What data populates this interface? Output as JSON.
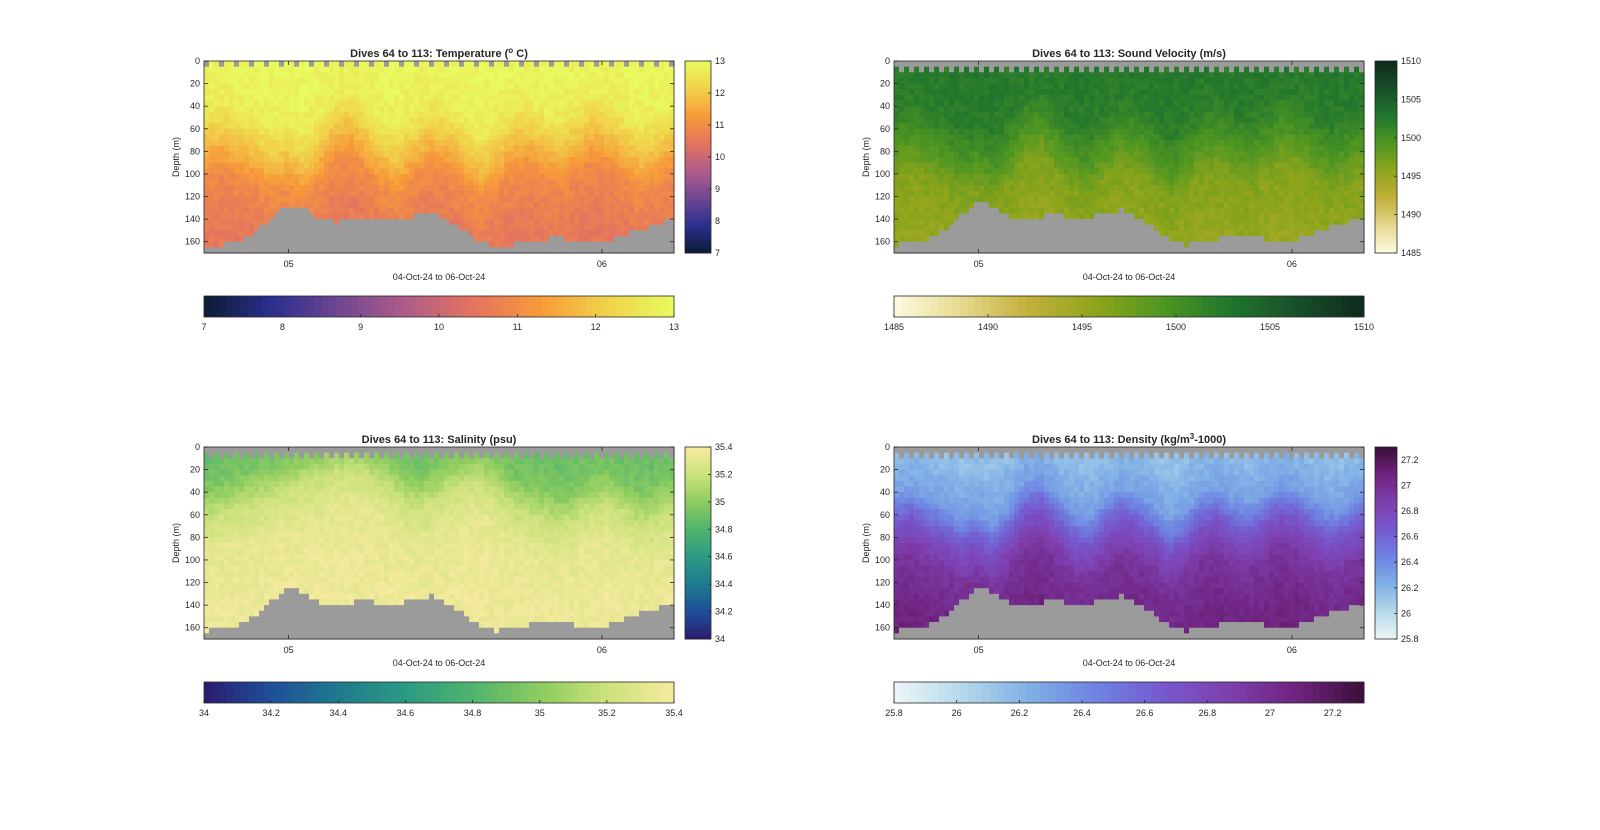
{
  "chart_data": [
    {
      "type": "heatmap",
      "title": "Dives 64 to 113: Temperature (",
      "title_sup": "o",
      "title_suffix": " C)",
      "xlabel": "04-Oct-24 to 06-Oct-24",
      "ylabel": "Depth (m)",
      "x_ticks": [
        "05",
        "06"
      ],
      "x_range_days": [
        4.73,
        6.23
      ],
      "x_tick_values": [
        5,
        6
      ],
      "y_ticks": [
        0,
        20,
        40,
        60,
        80,
        100,
        120,
        140,
        160
      ],
      "ylim": [
        0,
        170
      ],
      "y_reversed": true,
      "clim": [
        7,
        13
      ],
      "side_colorbar_ticks": [
        "7",
        "8",
        "9",
        "10",
        "11",
        "12",
        "13"
      ],
      "bottom_colorbar_ticks": [
        "7",
        "8",
        "9",
        "10",
        "11",
        "12",
        "13"
      ],
      "colormap": [
        "#0b1b33",
        "#2a2f8f",
        "#6e4690",
        "#b05c8a",
        "#e4735f",
        "#f79a3a",
        "#f1d24a",
        "#e8fb5f"
      ],
      "no_data_color": "#9b9b9b",
      "profile": [
        {
          "depth": 0,
          "value": 12.9
        },
        {
          "depth": 40,
          "value": 12.7
        },
        {
          "depth": 70,
          "value": 11.9
        },
        {
          "depth": 100,
          "value": 11.0
        },
        {
          "depth": 140,
          "value": 10.6
        },
        {
          "depth": 170,
          "value": 10.5
        }
      ],
      "mixed_layer_depth": [
        60,
        55,
        65,
        70,
        80,
        75,
        85,
        70,
        50,
        45,
        60,
        75,
        80,
        65,
        55,
        60,
        70,
        85,
        75,
        60,
        55,
        65,
        70,
        60,
        50,
        55,
        65,
        75,
        70,
        60
      ],
      "bottom_depth": [
        165,
        163,
        160,
        152,
        140,
        128,
        130,
        140,
        143,
        140,
        138,
        142,
        140,
        137,
        134,
        140,
        150,
        160,
        165,
        163,
        160,
        158,
        156,
        160,
        162,
        160,
        155,
        150,
        145,
        140
      ]
    },
    {
      "type": "heatmap",
      "title": "Dives 64 to 113: Sound Velocity (m/s)",
      "xlabel": "04-Oct-24 to 06-Oct-24",
      "ylabel": "Depth (m)",
      "x_ticks": [
        "05",
        "06"
      ],
      "x_range_days": [
        4.73,
        6.23
      ],
      "x_tick_values": [
        5,
        6
      ],
      "y_ticks": [
        0,
        20,
        40,
        60,
        80,
        100,
        120,
        140,
        160
      ],
      "ylim": [
        0,
        170
      ],
      "y_reversed": true,
      "clim": [
        1485,
        1510
      ],
      "side_colorbar_ticks": [
        "1485",
        "1490",
        "1495",
        "1500",
        "1505",
        "1510"
      ],
      "bottom_colorbar_ticks": [
        "1485",
        "1490",
        "1495",
        "1500",
        "1505",
        "1510"
      ],
      "colormap": [
        "#fdfbe2",
        "#e6d98f",
        "#c2b03a",
        "#8fa51b",
        "#4e9622",
        "#21762d",
        "#17502a",
        "#0f2a1d"
      ],
      "no_data_color": "#9b9b9b",
      "profile": [
        {
          "depth": 0,
          "value": 1502.5
        },
        {
          "depth": 40,
          "value": 1502.0
        },
        {
          "depth": 70,
          "value": 1499.5
        },
        {
          "depth": 100,
          "value": 1496.5
        },
        {
          "depth": 140,
          "value": 1495.5
        },
        {
          "depth": 170,
          "value": 1495.0
        }
      ],
      "mixed_layer_depth": [
        60,
        55,
        65,
        70,
        80,
        75,
        85,
        70,
        50,
        45,
        60,
        75,
        80,
        65,
        55,
        60,
        70,
        85,
        75,
        60,
        55,
        65,
        70,
        60,
        50,
        55,
        65,
        75,
        70,
        60
      ],
      "bottom_depth": [
        163,
        161,
        158,
        150,
        138,
        125,
        128,
        138,
        141,
        138,
        136,
        140,
        138,
        135,
        132,
        138,
        148,
        158,
        163,
        161,
        158,
        156,
        154,
        158,
        160,
        158,
        153,
        148,
        143,
        138
      ]
    },
    {
      "type": "heatmap",
      "title": "Dives 64 to 113: Salinity (psu)",
      "xlabel": "04-Oct-24 to 06-Oct-24",
      "ylabel": "Depth (m)",
      "x_ticks": [
        "05",
        "06"
      ],
      "x_range_days": [
        4.73,
        6.23
      ],
      "x_tick_values": [
        5,
        6
      ],
      "y_ticks": [
        0,
        20,
        40,
        60,
        80,
        100,
        120,
        140,
        160
      ],
      "ylim": [
        0,
        170
      ],
      "y_reversed": true,
      "clim": [
        34,
        35.4
      ],
      "side_colorbar_ticks": [
        "34",
        "34.2",
        "34.4",
        "34.6",
        "34.8",
        "35",
        "35.2",
        "35.4"
      ],
      "bottom_colorbar_ticks": [
        "34",
        "34.2",
        "34.4",
        "34.6",
        "34.8",
        "35",
        "35.2",
        "35.4"
      ],
      "colormap": [
        "#2a1a6e",
        "#1f4f99",
        "#1e7a8f",
        "#2b9a83",
        "#4fb36e",
        "#8ccc5f",
        "#cbe27a",
        "#f6ea9f"
      ],
      "no_data_color": "#9b9b9b",
      "profile": [
        {
          "depth": 0,
          "value": 34.85
        },
        {
          "depth": 40,
          "value": 34.95
        },
        {
          "depth": 70,
          "value": 35.2
        },
        {
          "depth": 100,
          "value": 35.32
        },
        {
          "depth": 140,
          "value": 35.35
        },
        {
          "depth": 170,
          "value": 35.36
        }
      ],
      "mixed_layer_depth": [
        55,
        50,
        45,
        40,
        35,
        30,
        25,
        20,
        15,
        12,
        15,
        25,
        35,
        45,
        40,
        30,
        25,
        20,
        30,
        45,
        50,
        55,
        60,
        55,
        45,
        40,
        50,
        60,
        55,
        50
      ],
      "bottom_depth": [
        163,
        161,
        158,
        150,
        138,
        125,
        128,
        138,
        141,
        138,
        136,
        140,
        138,
        135,
        132,
        138,
        148,
        158,
        163,
        161,
        158,
        156,
        154,
        158,
        160,
        158,
        153,
        148,
        143,
        138
      ]
    },
    {
      "type": "heatmap",
      "title": "Dives 64 to 113: Density (kg/m",
      "title_sup": "3",
      "title_suffix": "-1000)",
      "xlabel": "04-Oct-24 to 06-Oct-24",
      "ylabel": "Depth (m)",
      "x_ticks": [
        "05",
        "06"
      ],
      "x_range_days": [
        4.73,
        6.23
      ],
      "x_tick_values": [
        5,
        6
      ],
      "y_ticks": [
        0,
        20,
        40,
        60,
        80,
        100,
        120,
        140,
        160
      ],
      "ylim": [
        0,
        170
      ],
      "y_reversed": true,
      "clim": [
        25.8,
        27.3
      ],
      "side_colorbar_ticks": [
        "25.8",
        "26",
        "26.2",
        "26.4",
        "26.6",
        "26.8",
        "27",
        "27.2"
      ],
      "bottom_colorbar_ticks": [
        "25.8",
        "26",
        "26.2",
        "26.4",
        "26.6",
        "26.8",
        "27",
        "27.2"
      ],
      "colormap": [
        "#eef6f8",
        "#b6d9ea",
        "#80b0e6",
        "#6e84e2",
        "#7659cf",
        "#7e3fae",
        "#6f237f",
        "#3b0f3a"
      ],
      "no_data_color": "#9b9b9b",
      "profile": [
        {
          "depth": 0,
          "value": 26.15
        },
        {
          "depth": 40,
          "value": 26.3
        },
        {
          "depth": 70,
          "value": 26.7
        },
        {
          "depth": 100,
          "value": 26.95
        },
        {
          "depth": 140,
          "value": 27.05
        },
        {
          "depth": 170,
          "value": 27.1
        }
      ],
      "mixed_layer_depth": [
        60,
        55,
        65,
        70,
        80,
        75,
        85,
        70,
        50,
        45,
        60,
        75,
        80,
        65,
        55,
        60,
        70,
        85,
        75,
        60,
        55,
        65,
        70,
        60,
        50,
        55,
        65,
        75,
        70,
        60
      ],
      "bottom_depth": [
        163,
        161,
        158,
        150,
        138,
        125,
        128,
        138,
        141,
        138,
        136,
        140,
        138,
        135,
        132,
        138,
        148,
        158,
        163,
        161,
        158,
        156,
        154,
        158,
        160,
        158,
        153,
        148,
        143,
        138
      ]
    }
  ]
}
